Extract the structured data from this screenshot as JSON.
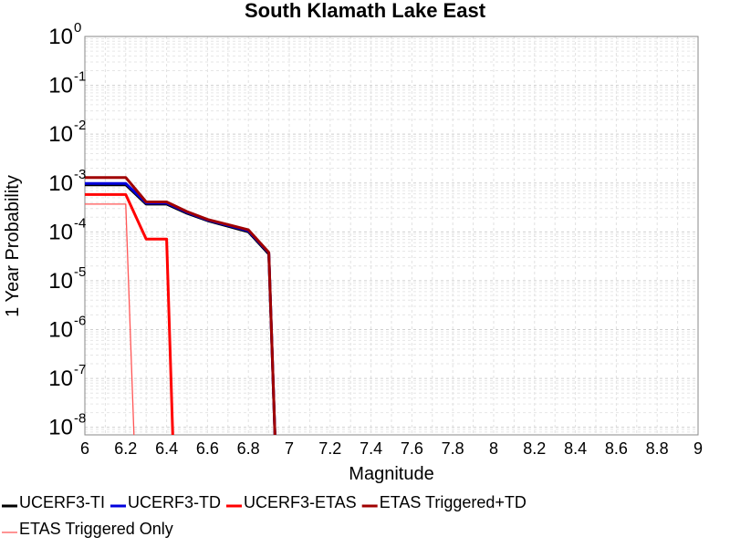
{
  "chart_data": {
    "type": "line",
    "title": "South Klamath Lake East",
    "xlabel": "Magnitude",
    "ylabel": "1 Year Probability",
    "xlim": [
      6,
      9
    ],
    "ylim": [
      7e-09,
      1
    ],
    "yscale": "log",
    "grid": true,
    "legend_position": "bottom",
    "x_ticks": [
      "6",
      "6.2",
      "6.4",
      "6.6",
      "6.8",
      "7",
      "7.2",
      "7.4",
      "7.6",
      "7.8",
      "8",
      "8.2",
      "8.4",
      "8.6",
      "8.8",
      "9"
    ],
    "y_ticks": [
      {
        "base": "10",
        "exp": "0",
        "value": 1
      },
      {
        "base": "10",
        "exp": "-1",
        "value": 0.1
      },
      {
        "base": "10",
        "exp": "-2",
        "value": 0.01
      },
      {
        "base": "10",
        "exp": "-3",
        "value": 0.001
      },
      {
        "base": "10",
        "exp": "-4",
        "value": 0.0001
      },
      {
        "base": "10",
        "exp": "-5",
        "value": 1e-05
      },
      {
        "base": "10",
        "exp": "-6",
        "value": 1e-06
      },
      {
        "base": "10",
        "exp": "-7",
        "value": 1e-07
      },
      {
        "base": "10",
        "exp": "-8",
        "value": 1e-08
      }
    ],
    "series": [
      {
        "name": "UCERF3-TI",
        "color": "#000000",
        "width": 3,
        "x": [
          6.0,
          6.2,
          6.3,
          6.4,
          6.5,
          6.6,
          6.8,
          6.9,
          6.93
        ],
        "y": [
          0.00092,
          0.00092,
          0.00037,
          0.00037,
          0.00024,
          0.00017,
          0.0001,
          3.5e-05,
          7e-09
        ]
      },
      {
        "name": "UCERF3-TD",
        "color": "#0000dd",
        "width": 3,
        "x": [
          6.0,
          6.2,
          6.3,
          6.4,
          6.5,
          6.6,
          6.8,
          6.9,
          6.93
        ],
        "y": [
          0.00098,
          0.00098,
          0.00039,
          0.00039,
          0.00025,
          0.000175,
          0.000105,
          3.7e-05,
          7e-09
        ]
      },
      {
        "name": "UCERF3-ETAS",
        "color": "#ff0000",
        "width": 3,
        "x": [
          6.0,
          6.2,
          6.3,
          6.4,
          6.43
        ],
        "y": [
          0.00058,
          0.00058,
          7.1e-05,
          7.1e-05,
          7e-09
        ]
      },
      {
        "name": "ETAS Triggered+TD",
        "color": "#a00000",
        "width": 3,
        "x": [
          6.0,
          6.2,
          6.3,
          6.4,
          6.5,
          6.6,
          6.8,
          6.9,
          6.93
        ],
        "y": [
          0.0013,
          0.0013,
          0.00041,
          0.00041,
          0.00026,
          0.00018,
          0.00011,
          3.8e-05,
          7e-09
        ]
      },
      {
        "name": "ETAS Triggered Only",
        "color": "#ff5555",
        "width": 1.3,
        "x": [
          6.0,
          6.2,
          6.24
        ],
        "y": [
          0.00037,
          0.00037,
          7e-09
        ]
      }
    ]
  }
}
